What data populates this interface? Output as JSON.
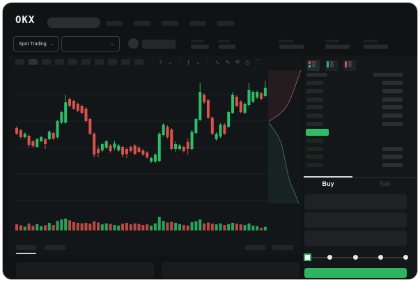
{
  "colors": {
    "green": "#2ebd69",
    "red": "#d9534c",
    "grid": "#1d2122",
    "buy_btn": "#2fb55f",
    "ask_row": "#232726",
    "bid_row": "#182a1f",
    "depth_red_line": "#8f5458",
    "depth_green_line": "#3c6b52",
    "depth_red_fill": "rgba(190,90,95,0.10)",
    "depth_green_fill": "rgba(58,160,108,0.10)"
  },
  "header": {
    "logo": "OKX"
  },
  "ticker": {
    "market_label": "Spot Trading",
    "chevron": "⌄"
  },
  "toolbar": {
    "icons": [
      {
        "name": "interval-icon",
        "glyph": "⌇"
      },
      {
        "name": "chevron-down-icon",
        "glyph": "⌄"
      },
      {
        "name": "indicators-icon",
        "glyph": "ƒ"
      },
      {
        "name": "chevron-down-icon",
        "glyph": "⌄"
      },
      {
        "name": "line-tool-icon",
        "glyph": "∿"
      },
      {
        "name": "draw-tool-icon",
        "glyph": "✎"
      },
      {
        "name": "screenshot-icon",
        "glyph": "⧉"
      },
      {
        "name": "history-icon",
        "glyph": "◷"
      },
      {
        "name": "fullscreen-icon",
        "glyph": "⛶"
      }
    ]
  },
  "orderbook": {
    "layout_icons": [
      "orderbook-both-icon",
      "orderbook-bids-icon",
      "orderbook-asks-icon"
    ],
    "asks_rows": 6,
    "bids_rows": 4,
    "bids_rows_with_amount": [
      1,
      2,
      3
    ]
  },
  "trade": {
    "tabs": [
      {
        "label": "Buy"
      },
      {
        "label": "Sell"
      }
    ],
    "active_tab": "Buy",
    "fields": 3,
    "slider": {
      "value_percent": 0,
      "stops": 5
    }
  },
  "chart_data": [
    {
      "type": "candlestick",
      "title": "",
      "xlabel": "",
      "ylabel": "",
      "ylim": [
        55,
        185
      ],
      "grid_prices": [
        158,
        120,
        82,
        44,
        6
      ],
      "ohlc": [
        [
          110,
          113,
          100,
          102
        ],
        [
          107,
          109,
          95,
          97
        ],
        [
          97,
          104,
          95,
          102
        ],
        [
          99,
          101,
          82,
          86
        ],
        [
          91,
          93,
          82,
          84
        ],
        [
          83,
          96,
          82,
          94
        ],
        [
          91,
          99,
          90,
          97
        ],
        [
          94,
          96,
          80,
          87
        ],
        [
          94,
          107,
          93,
          105
        ],
        [
          103,
          105,
          93,
          95
        ],
        [
          97,
          122,
          95,
          120
        ],
        [
          118,
          135,
          116,
          133
        ],
        [
          118,
          158,
          116,
          147
        ],
        [
          152,
          154,
          140,
          142
        ],
        [
          149,
          151,
          136,
          138
        ],
        [
          145,
          147,
          133,
          135
        ],
        [
          142,
          144,
          130,
          132
        ],
        [
          138,
          140,
          118,
          120
        ],
        [
          123,
          125,
          100,
          102
        ],
        [
          102,
          104,
          68,
          72
        ],
        [
          80,
          85,
          68,
          74
        ],
        [
          78,
          89,
          76,
          87
        ],
        [
          82,
          93,
          80,
          91
        ],
        [
          85,
          87,
          75,
          77
        ],
        [
          82,
          92,
          78,
          88
        ],
        [
          78,
          87,
          76,
          85
        ],
        [
          83,
          85,
          68,
          72
        ],
        [
          80,
          82,
          67,
          73
        ],
        [
          83,
          85,
          75,
          77
        ],
        [
          85,
          87,
          71,
          73
        ],
        [
          82,
          84,
          74,
          76
        ],
        [
          78,
          80,
          70,
          72
        ],
        [
          75,
          77,
          66,
          68
        ],
        [
          62,
          69,
          60,
          67
        ],
        [
          62,
          74,
          60,
          72
        ],
        [
          63,
          104,
          61,
          102
        ],
        [
          100,
          117,
          98,
          115
        ],
        [
          112,
          114,
          95,
          97
        ],
        [
          108,
          110,
          78,
          80
        ],
        [
          80,
          91,
          76,
          87
        ],
        [
          80,
          87,
          78,
          85
        ],
        [
          83,
          85,
          75,
          77
        ],
        [
          90,
          95,
          72,
          80
        ],
        [
          80,
          107,
          78,
          105
        ],
        [
          103,
          125,
          101,
          123
        ],
        [
          122,
          175,
          120,
          162
        ],
        [
          158,
          160,
          145,
          147
        ],
        [
          150,
          152,
          123,
          125
        ],
        [
          125,
          127,
          100,
          102
        ],
        [
          94,
          104,
          92,
          102
        ],
        [
          98,
          117,
          96,
          115
        ],
        [
          115,
          117,
          100,
          102
        ],
        [
          112,
          135,
          110,
          133
        ],
        [
          132,
          162,
          130,
          158
        ],
        [
          155,
          157,
          140,
          142
        ],
        [
          148,
          150,
          131,
          133
        ],
        [
          132,
          147,
          130,
          145
        ],
        [
          143,
          175,
          141,
          165
        ],
        [
          148,
          164,
          146,
          162
        ],
        [
          154,
          164,
          152,
          162
        ],
        [
          160,
          162,
          150,
          152
        ],
        [
          156,
          178,
          154,
          168
        ]
      ],
      "volume": [
        40,
        34,
        25,
        45,
        30,
        42,
        28,
        34,
        50,
        36,
        62,
        72,
        78,
        66,
        55,
        50,
        46,
        50,
        44,
        60,
        52,
        40,
        46,
        42,
        36,
        32,
        44,
        50,
        40,
        46,
        42,
        36,
        40,
        32,
        46,
        88,
        62,
        52,
        56,
        50,
        42,
        36,
        32,
        54,
        60,
        72,
        46,
        52,
        44,
        40,
        46,
        36,
        42,
        50,
        44,
        40,
        36,
        46,
        32,
        28,
        18,
        24
      ]
    },
    {
      "type": "area",
      "name": "market-depth",
      "xlim": [
        0,
        100
      ],
      "ylim": [
        0,
        100
      ],
      "asks": [
        [
          92,
          0
        ],
        [
          84,
          6
        ],
        [
          76,
          12
        ],
        [
          68,
          18
        ],
        [
          58,
          24
        ],
        [
          46,
          29
        ],
        [
          30,
          33
        ],
        [
          14,
          36
        ],
        [
          2,
          38
        ]
      ],
      "bids": [
        [
          2,
          39
        ],
        [
          16,
          44
        ],
        [
          28,
          49
        ],
        [
          38,
          55
        ],
        [
          44,
          62
        ],
        [
          50,
          70
        ],
        [
          56,
          78
        ],
        [
          64,
          85
        ],
        [
          76,
          92
        ],
        [
          86,
          99
        ]
      ]
    }
  ]
}
